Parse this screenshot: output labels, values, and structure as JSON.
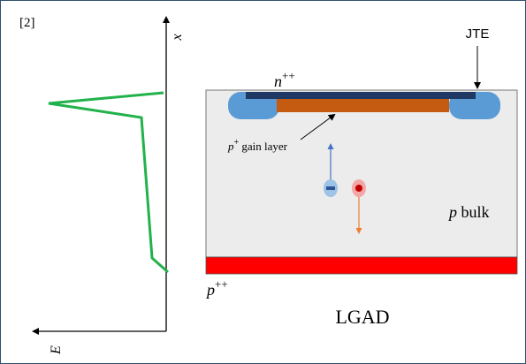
{
  "citation": "[2]",
  "axes": {
    "vertical": "x",
    "horizontal": "E"
  },
  "labels": {
    "jte": "JTE",
    "n_plus": {
      "base": "n",
      "sup": "++"
    },
    "gain_layer": {
      "base": "p",
      "sup": "+",
      "text": " gain layer"
    },
    "bulk": {
      "base": "p",
      "text": " bulk"
    },
    "p_plus": {
      "base": "p",
      "sup": "++"
    },
    "device": "LGAD"
  }
}
